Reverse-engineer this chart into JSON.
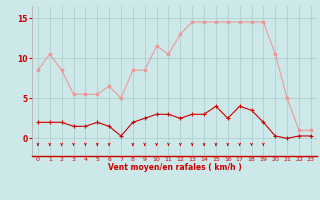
{
  "hours": [
    0,
    1,
    2,
    3,
    4,
    5,
    6,
    7,
    8,
    9,
    10,
    11,
    12,
    13,
    14,
    15,
    16,
    17,
    18,
    19,
    20,
    21,
    22,
    23
  ],
  "wind_avg": [
    2,
    2,
    2,
    1.5,
    1.5,
    2,
    1.5,
    0.3,
    2,
    2.5,
    3,
    3,
    2.5,
    3,
    3,
    4,
    2.5,
    4,
    3.5,
    2,
    0.3,
    0,
    0.3,
    0.3
  ],
  "wind_gust": [
    8.5,
    10.5,
    8.5,
    5.5,
    5.5,
    5.5,
    6.5,
    5,
    8.5,
    8.5,
    11.5,
    10.5,
    13,
    14.5,
    14.5,
    14.5,
    14.5,
    14.5,
    14.5,
    14.5,
    10.5,
    5,
    1,
    1
  ],
  "bg_color": "#cce8e8",
  "grid_color": "#aacccc",
  "line_color_avg": "#cc0000",
  "line_color_gust": "#ee9999",
  "xlabel": "Vent moyen/en rafales ( km/h )",
  "xlabel_color": "#cc0000",
  "tick_color": "#cc0000",
  "ytick_labels": [
    "0",
    "5",
    "10",
    "15"
  ],
  "ytick_vals": [
    0,
    5,
    10,
    15
  ],
  "ylim": [
    -2.2,
    16.5
  ],
  "xlim": [
    -0.5,
    23.5
  ],
  "arrow_hours": [
    0,
    1,
    2,
    3,
    4,
    5,
    6,
    8,
    9,
    10,
    11,
    12,
    13,
    14,
    15,
    16,
    17,
    18,
    19
  ],
  "figwidth": 3.2,
  "figheight": 2.0,
  "dpi": 100
}
